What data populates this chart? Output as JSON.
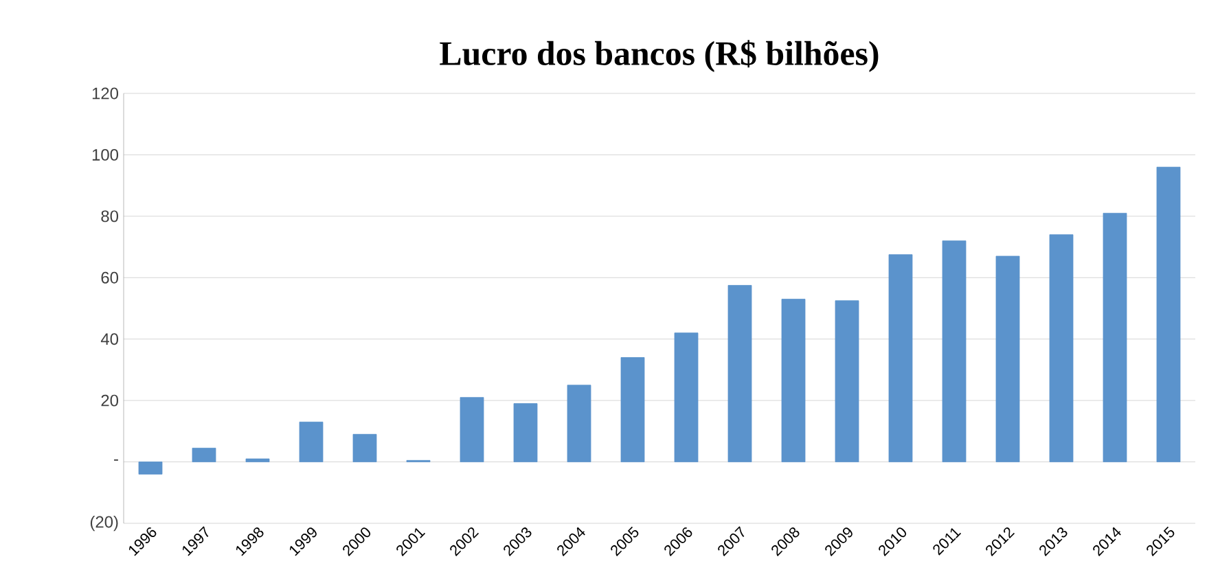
{
  "chart_data": {
    "type": "bar",
    "title": "Lucro dos bancos (R$ bilhões)",
    "categories": [
      "1996",
      "1997",
      "1998",
      "1999",
      "2000",
      "2001",
      "2002",
      "2003",
      "2004",
      "2005",
      "2006",
      "2007",
      "2008",
      "2009",
      "2010",
      "2011",
      "2012",
      "2013",
      "2014",
      "2015"
    ],
    "values": [
      -4,
      4.5,
      1,
      13,
      9,
      0.5,
      21,
      19,
      25,
      34,
      42,
      57.5,
      53,
      52.5,
      67.5,
      72,
      67,
      74,
      81,
      96
    ],
    "color": "#5b93cc",
    "ylim": [
      -20,
      120
    ],
    "yticks": [
      {
        "value": -20,
        "label": "(20)"
      },
      {
        "value": 0,
        "label": "-"
      },
      20,
      40,
      60,
      80,
      100,
      120
    ],
    "grid": "y"
  }
}
